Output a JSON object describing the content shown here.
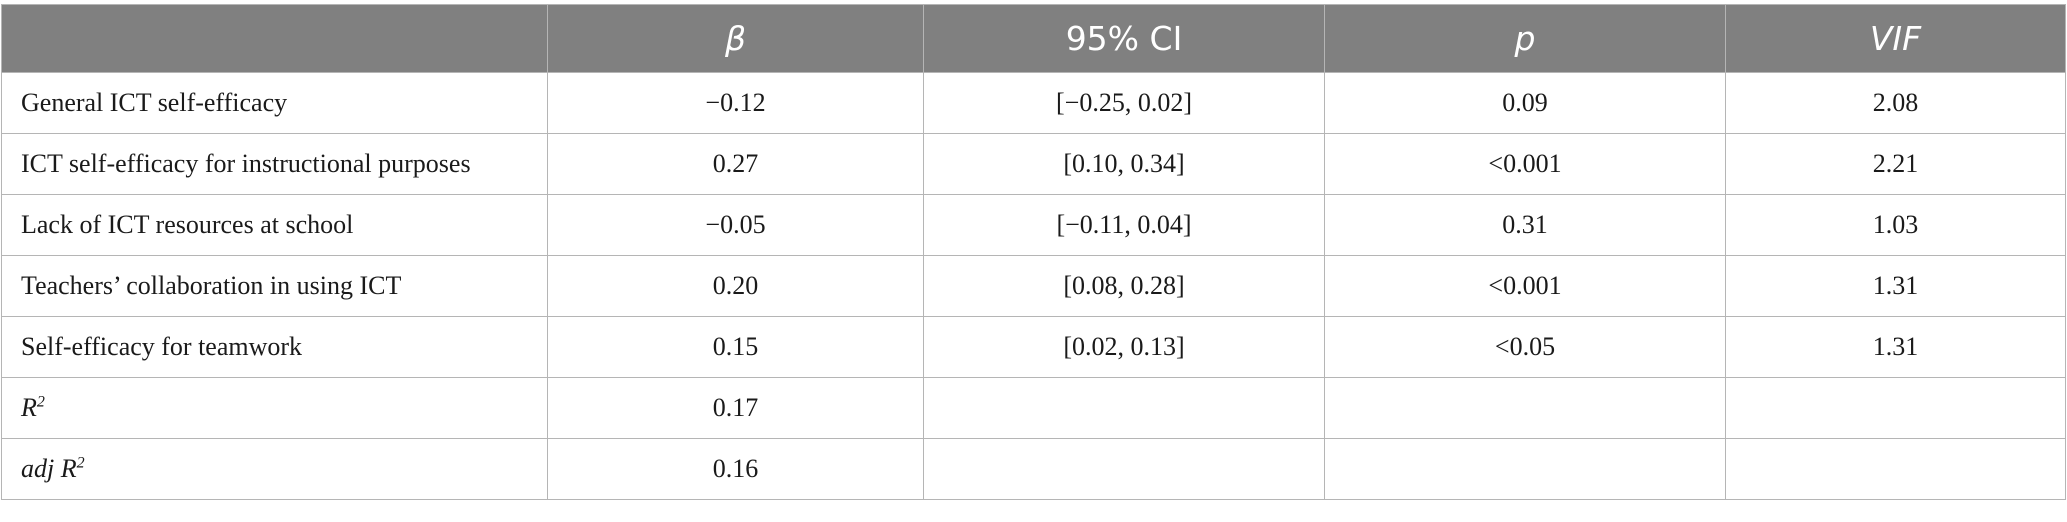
{
  "table": {
    "headers": [
      "",
      "β",
      "95% CI",
      "p",
      "VIF"
    ],
    "rows": [
      {
        "label": "General ICT self-efficacy",
        "beta": "−0.12",
        "ci": "[−0.25, 0.02]",
        "p": "0.09",
        "vif": "2.08"
      },
      {
        "label": "ICT self-efficacy for instructional purposes",
        "beta": "0.27",
        "ci": "[0.10, 0.34]",
        "p": "<0.001",
        "vif": "2.21"
      },
      {
        "label": "Lack of ICT resources at school",
        "beta": "−0.05",
        "ci": "[−0.11, 0.04]",
        "p": "0.31",
        "vif": "1.03"
      },
      {
        "label": "Teachers’ collaboration in using ICT",
        "beta": "0.20",
        "ci": "[0.08, 0.28]",
        "p": "<0.001",
        "vif": "1.31"
      },
      {
        "label": "Self-efficacy for teamwork",
        "beta": "0.15",
        "ci": "[0.02, 0.13]",
        "p": "<0.05",
        "vif": "1.31"
      }
    ],
    "stats": [
      {
        "label_main": "R",
        "label_sup": "2",
        "value": "0.17"
      },
      {
        "label_main": "adj R",
        "label_sup": "2",
        "value": "0.16"
      }
    ]
  }
}
